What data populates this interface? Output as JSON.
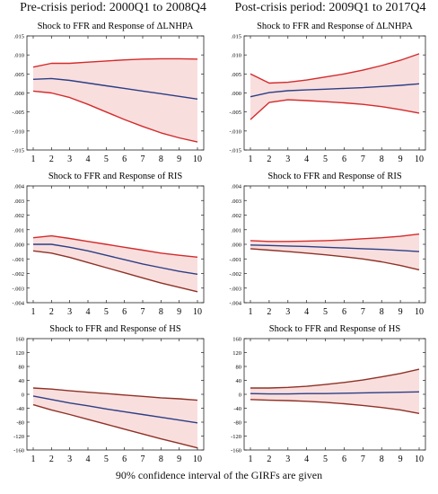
{
  "headers": {
    "left": "Pre-crisis period: 2000Q1 to 2008Q4",
    "right": "Post-crisis period: 2009Q1 to 2017Q4"
  },
  "footer": "90% confidence interval of the GIRFs are given",
  "colors": {
    "bounds": "#d42a2a",
    "response": "#2b3f86",
    "brown": "#8e3226",
    "band": "#f9dede"
  },
  "chart_data": [
    {
      "id": "pre-lnhpa",
      "type": "line",
      "title": "Shock to FFR and Response of  ΔLNHPA",
      "x": [
        1,
        2,
        3,
        4,
        5,
        6,
        7,
        8,
        9,
        10
      ],
      "ylim": [
        -0.015,
        0.015
      ],
      "yticks": [
        -0.015,
        -0.01,
        -0.005,
        0.0,
        0.005,
        0.01,
        0.015
      ],
      "ytick_labels": [
        "-.015",
        "-.010",
        "-.005",
        ".000",
        ".005",
        ".010",
        ".015"
      ],
      "series": [
        {
          "role": "upper",
          "color": "#d42a2a",
          "values": [
            0.0068,
            0.0078,
            0.0078,
            0.0081,
            0.0084,
            0.0087,
            0.0089,
            0.009,
            0.009,
            0.0089
          ]
        },
        {
          "role": "response",
          "color": "#2b3f86",
          "values": [
            0.0036,
            0.0038,
            0.0033,
            0.0026,
            0.0019,
            0.0012,
            0.0005,
            -0.0002,
            -0.0009,
            -0.0016
          ]
        },
        {
          "role": "lower",
          "color": "#d42a2a",
          "values": [
            0.0005,
            0.0,
            -0.0012,
            -0.003,
            -0.005,
            -0.007,
            -0.0088,
            -0.0105,
            -0.0118,
            -0.0129
          ]
        }
      ]
    },
    {
      "id": "post-lnhpa",
      "type": "line",
      "title": "Shock to FFR and Response of  ΔLNHPA",
      "x": [
        1,
        2,
        3,
        4,
        5,
        6,
        7,
        8,
        9,
        10
      ],
      "ylim": [
        -0.015,
        0.015
      ],
      "yticks": [
        -0.015,
        -0.01,
        -0.005,
        0.0,
        0.005,
        0.01,
        0.015
      ],
      "ytick_labels": [
        "-.015",
        "-.010",
        "-.005",
        ".000",
        ".005",
        ".010",
        ".015"
      ],
      "series": [
        {
          "role": "upper",
          "color": "#d42a2a",
          "values": [
            0.005,
            0.0026,
            0.0028,
            0.0034,
            0.0042,
            0.005,
            0.006,
            0.0072,
            0.0086,
            0.0103
          ]
        },
        {
          "role": "response",
          "color": "#2b3f86",
          "values": [
            -0.001,
            0.0001,
            0.0006,
            0.0008,
            0.001,
            0.0012,
            0.0014,
            0.0017,
            0.002,
            0.0024
          ]
        },
        {
          "role": "lower",
          "color": "#d42a2a",
          "values": [
            -0.007,
            -0.0025,
            -0.0018,
            -0.002,
            -0.0023,
            -0.0026,
            -0.003,
            -0.0036,
            -0.0044,
            -0.0053
          ]
        }
      ]
    },
    {
      "id": "pre-ris",
      "type": "line",
      "title": "Shock to FFR and Response of  RIS",
      "x": [
        1,
        2,
        3,
        4,
        5,
        6,
        7,
        8,
        9,
        10
      ],
      "ylim": [
        -0.004,
        0.004
      ],
      "yticks": [
        -0.004,
        -0.003,
        -0.002,
        -0.001,
        0.0,
        0.001,
        0.002,
        0.003,
        0.004
      ],
      "ytick_labels": [
        "-.004",
        "-.003",
        "-.002",
        "-.001",
        ".000",
        ".001",
        ".002",
        ".003",
        ".004"
      ],
      "series": [
        {
          "role": "upper",
          "color": "#d42a2a",
          "values": [
            0.00045,
            0.00058,
            0.0004,
            0.0002,
            0.0,
            -0.0002,
            -0.0004,
            -0.0006,
            -0.00075,
            -0.00088
          ]
        },
        {
          "role": "response",
          "color": "#2b3f86",
          "values": [
            0.0,
            0.0,
            -0.0002,
            -0.00045,
            -0.00075,
            -0.00105,
            -0.00135,
            -0.0016,
            -0.00185,
            -0.00205
          ]
        },
        {
          "role": "lower",
          "color": "#8e3226",
          "values": [
            -0.00045,
            -0.0006,
            -0.0009,
            -0.00125,
            -0.0016,
            -0.00195,
            -0.0023,
            -0.00265,
            -0.00295,
            -0.00325
          ]
        }
      ]
    },
    {
      "id": "post-ris",
      "type": "line",
      "title": "Shock to FFR and Response of  RIS",
      "x": [
        1,
        2,
        3,
        4,
        5,
        6,
        7,
        8,
        9,
        10
      ],
      "ylim": [
        -0.004,
        0.004
      ],
      "yticks": [
        -0.004,
        -0.003,
        -0.002,
        -0.001,
        0.0,
        0.001,
        0.002,
        0.003,
        0.004
      ],
      "ytick_labels": [
        "-.004",
        "-.003",
        "-.002",
        "-.001",
        ".000",
        ".001",
        ".002",
        ".003",
        ".004"
      ],
      "series": [
        {
          "role": "upper",
          "color": "#d42a2a",
          "values": [
            0.00025,
            0.0002,
            0.0002,
            0.00022,
            0.00025,
            0.0003,
            0.00038,
            0.00045,
            0.00055,
            0.0007
          ]
        },
        {
          "role": "response",
          "color": "#2b3f86",
          "values": [
            -5e-05,
            -8e-05,
            -0.00012,
            -0.00015,
            -0.0002,
            -0.00025,
            -0.0003,
            -0.00035,
            -0.00042,
            -0.0005
          ]
        },
        {
          "role": "lower",
          "color": "#8e3226",
          "values": [
            -0.0003,
            -0.0004,
            -0.0005,
            -0.0006,
            -0.00072,
            -0.00085,
            -0.001,
            -0.0012,
            -0.00145,
            -0.00175
          ]
        }
      ]
    },
    {
      "id": "pre-hs",
      "type": "line",
      "title": "Shock to FFR and Response of  HS",
      "x": [
        1,
        2,
        3,
        4,
        5,
        6,
        7,
        8,
        9,
        10
      ],
      "ylim": [
        -160,
        160
      ],
      "yticks": [
        -160,
        -120,
        -80,
        -40,
        0,
        40,
        80,
        120,
        160
      ],
      "ytick_labels": [
        "-160",
        "-120",
        "-80",
        "-40",
        "0",
        "40",
        "80",
        "120",
        "160"
      ],
      "series": [
        {
          "role": "upper",
          "color": "#8e3226",
          "values": [
            18,
            15,
            10,
            6,
            2,
            -2,
            -6,
            -10,
            -13,
            -17
          ]
        },
        {
          "role": "response",
          "color": "#2b3f86",
          "values": [
            -5,
            -15,
            -25,
            -33,
            -42,
            -50,
            -58,
            -66,
            -74,
            -82
          ]
        },
        {
          "role": "lower",
          "color": "#8e3226",
          "values": [
            -30,
            -45,
            -58,
            -72,
            -86,
            -100,
            -114,
            -128,
            -141,
            -154
          ]
        }
      ]
    },
    {
      "id": "post-hs",
      "type": "line",
      "title": "Shock to FFR and Response of  HS",
      "x": [
        1,
        2,
        3,
        4,
        5,
        6,
        7,
        8,
        9,
        10
      ],
      "ylim": [
        -160,
        160
      ],
      "yticks": [
        -160,
        -120,
        -80,
        -40,
        0,
        40,
        80,
        120,
        160
      ],
      "ytick_labels": [
        "-160",
        "-120",
        "-80",
        "-40",
        "0",
        "40",
        "80",
        "120",
        "160"
      ],
      "series": [
        {
          "role": "upper",
          "color": "#8e3226",
          "values": [
            18,
            18,
            20,
            23,
            28,
            34,
            41,
            50,
            60,
            72
          ]
        },
        {
          "role": "response",
          "color": "#2b3f86",
          "values": [
            2,
            1,
            1,
            2,
            2,
            3,
            4,
            5,
            6,
            7
          ]
        },
        {
          "role": "lower",
          "color": "#8e3226",
          "values": [
            -15,
            -17,
            -18,
            -20,
            -23,
            -27,
            -32,
            -38,
            -45,
            -55
          ]
        }
      ]
    }
  ]
}
